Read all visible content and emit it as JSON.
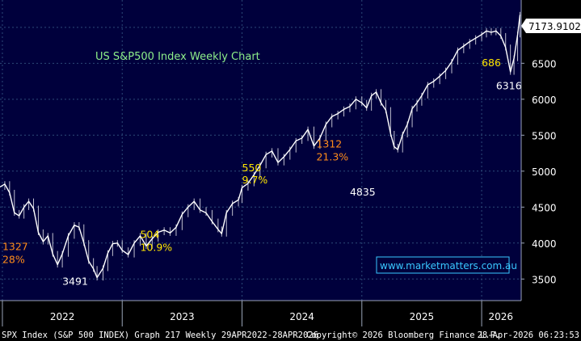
{
  "colors": {
    "background": "#00003c",
    "grid": "#2c4a78",
    "price": "#ffffff",
    "title": "#8ef08a",
    "orange": "#ff8c1a",
    "yellow": "#ffe600",
    "axis_text": "#ffffff",
    "footer_text": "#ffffff",
    "last_price_bg": "#ffffff",
    "last_price_text": "#000000",
    "watermark_border": "#39c8ff",
    "watermark_text": "#39c8ff"
  },
  "chart_data": {
    "type": "line",
    "title": "US S&P500 Index Weekly Chart",
    "xlabel": "",
    "ylabel": "",
    "ylim": [
      3200,
      7380
    ],
    "xlim": [
      2021.98,
      2026.33
    ],
    "y_ticks": [
      3500,
      4000,
      4500,
      5000,
      5500,
      6000,
      6500,
      7000
    ],
    "y_tick_labels": [
      "3500",
      "4000",
      "4500",
      "5000",
      "5500",
      "6000",
      "6500",
      "7000"
    ],
    "x_gridlines": [
      2022.0,
      2023.0,
      2024.0,
      2025.0,
      2026.0
    ],
    "x_tick_labels": [
      {
        "label": "2022",
        "at": 2022.5
      },
      {
        "label": "2023",
        "at": 2023.5
      },
      {
        "label": "2024",
        "at": 2024.5
      },
      {
        "label": "2025",
        "at": 2025.5
      },
      {
        "label": "2026",
        "at": 2026.16
      }
    ],
    "grid": true,
    "last_price": "7173.9102",
    "series": [
      {
        "name": "SPX weekly close",
        "x": [
          2021.98,
          2022.02,
          2022.06,
          2022.1,
          2022.14,
          2022.18,
          2022.22,
          2022.26,
          2022.3,
          2022.34,
          2022.38,
          2022.42,
          2022.46,
          2022.5,
          2022.55,
          2022.6,
          2022.64,
          2022.68,
          2022.72,
          2022.76,
          2022.79,
          2022.84,
          2022.88,
          2022.92,
          2022.96,
          2023.0,
          2023.05,
          2023.1,
          2023.15,
          2023.2,
          2023.25,
          2023.3,
          2023.35,
          2023.4,
          2023.45,
          2023.5,
          2023.55,
          2023.6,
          2023.65,
          2023.7,
          2023.75,
          2023.8,
          2023.83,
          2023.87,
          2023.92,
          2023.97,
          2024.0,
          2024.05,
          2024.1,
          2024.15,
          2024.2,
          2024.25,
          2024.3,
          2024.35,
          2024.4,
          2024.45,
          2024.5,
          2024.55,
          2024.6,
          2024.65,
          2024.7,
          2024.75,
          2024.8,
          2024.85,
          2024.9,
          2024.95,
          2025.0,
          2025.04,
          2025.08,
          2025.12,
          2025.16,
          2025.2,
          2025.24,
          2025.27,
          2025.3,
          2025.34,
          2025.38,
          2025.42,
          2025.46,
          2025.5,
          2025.55,
          2025.6,
          2025.65,
          2025.7,
          2025.75,
          2025.8,
          2025.85,
          2025.9,
          2025.95,
          2026.0,
          2026.04,
          2026.08,
          2026.12,
          2026.16,
          2026.2,
          2026.24,
          2026.27,
          2026.3,
          2026.32
        ],
        "values": [
          4780,
          4820,
          4700,
          4420,
          4380,
          4500,
          4580,
          4480,
          4150,
          4020,
          4100,
          3850,
          3700,
          3850,
          4100,
          4250,
          4220,
          4000,
          3750,
          3640,
          3520,
          3650,
          3860,
          3990,
          4000,
          3900,
          3840,
          4000,
          4100,
          3960,
          4060,
          4150,
          4180,
          4140,
          4220,
          4400,
          4500,
          4580,
          4460,
          4420,
          4300,
          4190,
          4130,
          4420,
          4550,
          4600,
          4770,
          4830,
          4950,
          5080,
          5230,
          5280,
          5120,
          5200,
          5300,
          5420,
          5460,
          5580,
          5350,
          5460,
          5650,
          5760,
          5800,
          5860,
          5900,
          6000,
          5950,
          5880,
          6050,
          6100,
          5950,
          5850,
          5520,
          5340,
          5300,
          5510,
          5650,
          5870,
          5950,
          6050,
          6200,
          6250,
          6320,
          6400,
          6520,
          6680,
          6740,
          6800,
          6850,
          6900,
          6950,
          6930,
          6950,
          6880,
          6720,
          6380,
          6570,
          6900,
          7174
        ]
      }
    ],
    "annotations": [
      {
        "text": "1327",
        "color": "orange",
        "x": 2022.0,
        "y": 3900
      },
      {
        "text": "28%",
        "color": "orange",
        "x": 2022.0,
        "y": 3720
      },
      {
        "text": "3491",
        "color": "white",
        "x": 2022.5,
        "y": 3420
      },
      {
        "text": "504",
        "color": "yellow",
        "x": 2023.15,
        "y": 4070
      },
      {
        "text": "10.9%",
        "color": "yellow",
        "x": 2023.15,
        "y": 3890
      },
      {
        "text": "550",
        "color": "yellow",
        "x": 2024.0,
        "y": 5000
      },
      {
        "text": "9.7%",
        "color": "yellow",
        "x": 2024.0,
        "y": 4830
      },
      {
        "text": "1312",
        "color": "orange",
        "x": 2024.62,
        "y": 5330
      },
      {
        "text": "21.3%",
        "color": "orange",
        "x": 2024.62,
        "y": 5150
      },
      {
        "text": "4835",
        "color": "white",
        "x": 2024.9,
        "y": 4660
      },
      {
        "text": "686",
        "color": "yellow",
        "x": 2026.0,
        "y": 6460
      },
      {
        "text": "6316",
        "color": "white",
        "x": 2026.12,
        "y": 6140
      }
    ]
  },
  "watermark": "www.marketmatters.com.au",
  "footer": {
    "left": "SPX Index (S&P 500 INDEX) Graph 217 Weekly 29APR2022-28APR2026",
    "center": "Copyright© 2026 Bloomberg Finance L.P.",
    "right": "28-Apr-2026 06:23:53"
  }
}
